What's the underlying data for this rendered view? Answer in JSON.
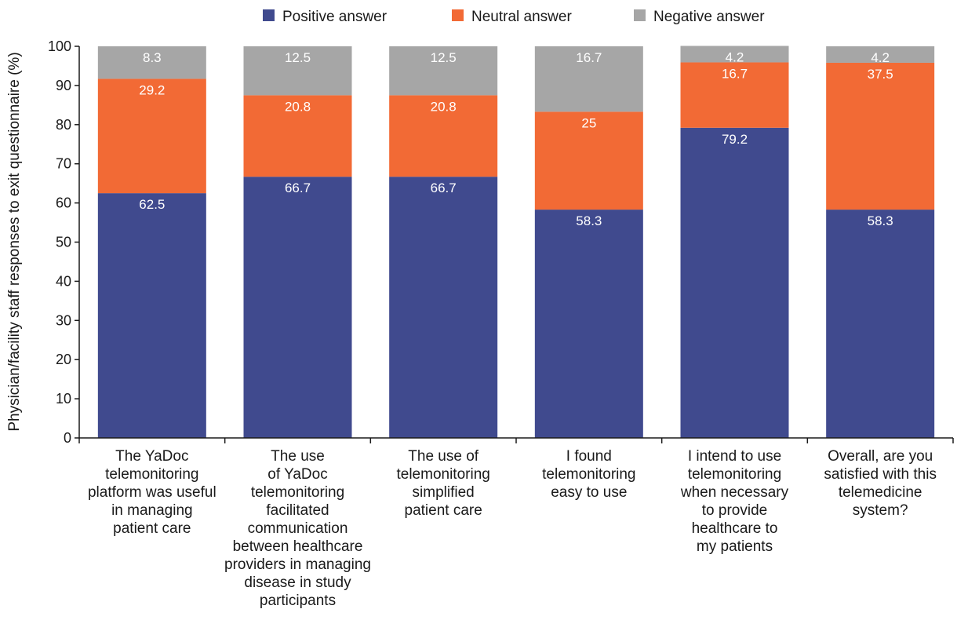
{
  "chart_data": {
    "type": "bar",
    "stacked": true,
    "title": "",
    "xlabel": "",
    "ylabel": "Physician/facility staff responses to exit questionnaire (%)",
    "ylim": [
      0,
      100
    ],
    "yticks": [
      "0",
      "10",
      "20",
      "30",
      "40",
      "50",
      "60",
      "70",
      "80",
      "90",
      "100"
    ],
    "grid": false,
    "legend_position": "top",
    "categories": [
      "The YaDoc\ntelemonitoring\nplatform was useful\nin managing\npatient care",
      "The use\nof YaDoc\ntelemonitoring\nfacilitated\ncommunication\nbetween healthcare\nproviders in managing\ndisease in study\nparticipants",
      "The use of\ntelemonitoring\nsimplified\npatient care",
      "I found\ntelemonitoring\neasy to use",
      "I intend to use\ntelemonitoring\nwhen necessary\nto provide\nhealthcare to\nmy patients",
      "Overall, are you\nsatisfied with this\ntelemedicine\nsystem?"
    ],
    "series": [
      {
        "name": "Positive answer",
        "color": "#404a8e",
        "values": [
          62.5,
          66.7,
          66.7,
          58.3,
          79.2,
          58.3
        ],
        "labels": [
          "62.5",
          "66.7",
          "66.7",
          "58.3",
          "79.2",
          "58.3"
        ]
      },
      {
        "name": "Neutral answer",
        "color": "#f26a35",
        "values": [
          29.2,
          20.8,
          20.8,
          25,
          16.7,
          37.5
        ],
        "labels": [
          "29.2",
          "20.8",
          "20.8",
          "25",
          "16.7",
          "37.5"
        ]
      },
      {
        "name": "Negative answer",
        "color": "#a6a6a6",
        "values": [
          8.3,
          12.5,
          12.5,
          16.7,
          4.2,
          4.2
        ],
        "labels": [
          "8.3",
          "12.5",
          "12.5",
          "16.7",
          "4.2",
          "4.2"
        ]
      }
    ]
  }
}
